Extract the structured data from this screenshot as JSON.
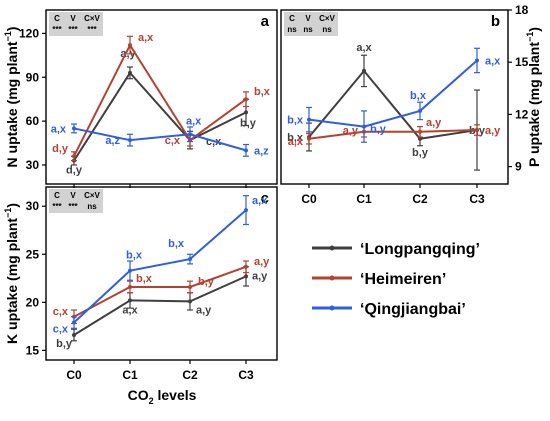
{
  "colors": {
    "Longpangqing": "#3f3f3f",
    "Heimeiren": "#b5412f",
    "Qingjiangbai": "#2f5fe0",
    "anova_bg": "#d2d2d2"
  },
  "legend": [
    {
      "key": "Longpangqing",
      "label": "‘Longpangqing’"
    },
    {
      "key": "Heimeiren",
      "label": "‘Heimeiren’"
    },
    {
      "key": "Qingjiangbai",
      "label": "‘Qingjiangbai’"
    }
  ],
  "xlabel_main": "CO",
  "xlabel_sub": "2",
  "xlabel_rest": " levels",
  "chart_data": [
    {
      "panel": "a",
      "type": "line",
      "ylabel_main": "N uptake (mg plant",
      "ylabel_sup": "−1",
      "ylabel_end": ")",
      "categories": [
        "C0",
        "C1",
        "C2",
        "C3"
      ],
      "ylim": [
        17,
        136
      ],
      "yticks": [
        30,
        60,
        90,
        120
      ],
      "anova": {
        "headers": [
          "C",
          "V",
          "C×V"
        ],
        "values": [
          "***",
          "***",
          "***"
        ]
      },
      "series": [
        {
          "name": "Longpangqing",
          "values": [
            33,
            93,
            47,
            66
          ],
          "errors": [
            3,
            4,
            6,
            9
          ],
          "labels": [
            "d,y",
            "a,y",
            "c,x",
            "b,y"
          ]
        },
        {
          "name": "Heimeiren",
          "values": [
            36,
            112,
            47,
            75
          ],
          "errors": [
            3,
            6,
            4,
            5
          ],
          "labels": [
            "d,y",
            "a,x",
            "c,x",
            "b,x"
          ]
        },
        {
          "name": "Qingjiangbai",
          "values": [
            55,
            47,
            51,
            40
          ],
          "errors": [
            3,
            4,
            5,
            4
          ],
          "labels": [
            "a,x",
            "a,z",
            "a,x",
            "a,z"
          ]
        }
      ]
    },
    {
      "panel": "b",
      "type": "line",
      "ylabel_main": "P uptake (mg plant",
      "ylabel_sup": "−1",
      "ylabel_end": ")",
      "categories": [
        "C0",
        "C1",
        "C2",
        "C3"
      ],
      "ylim": [
        8,
        18
      ],
      "yticks": [
        9,
        12,
        15,
        18
      ],
      "anova": {
        "headers": [
          "C",
          "V",
          "C×V"
        ],
        "values": [
          "ns",
          "ns",
          "ns"
        ]
      },
      "series": [
        {
          "name": "Longpangqing",
          "values": [
            10.7,
            14.5,
            10.6,
            11.1
          ],
          "errors": [
            0.8,
            0.9,
            0.4,
            2.3
          ],
          "labels": [
            "b,x",
            "a,x",
            "b,y",
            "b,y"
          ]
        },
        {
          "name": "Heimeiren",
          "values": [
            10.6,
            11.0,
            11.0,
            11.1
          ],
          "errors": [
            0.3,
            0.3,
            0.3,
            0.3
          ],
          "labels": [
            "a,x",
            "a,y",
            "a,y",
            "a,y"
          ]
        },
        {
          "name": "Qingjiangbai",
          "values": [
            11.7,
            11.3,
            12.2,
            15.1
          ],
          "errors": [
            0.7,
            0.9,
            0.5,
            0.7
          ],
          "labels": [
            "b,x",
            "b,y",
            "b,x",
            "a,x"
          ]
        }
      ]
    },
    {
      "panel": "c",
      "type": "line",
      "ylabel_main": "K uptake (mg plant",
      "ylabel_sup": "−1",
      "ylabel_end": ")",
      "categories": [
        "C0",
        "C1",
        "C2",
        "C3"
      ],
      "ylim": [
        14,
        32
      ],
      "yticks": [
        15,
        20,
        25,
        30
      ],
      "anova": {
        "headers": [
          "C",
          "V",
          "C×V"
        ],
        "values": [
          "***",
          "***",
          "ns"
        ]
      },
      "series": [
        {
          "name": "Longpangqing",
          "values": [
            16.6,
            20.2,
            20.1,
            22.7
          ],
          "errors": [
            0.6,
            0.8,
            0.9,
            1.0
          ],
          "labels": [
            "b,y",
            "a,x",
            "a,y",
            "a,y"
          ]
        },
        {
          "name": "Heimeiren",
          "values": [
            18.5,
            21.6,
            21.6,
            23.7
          ],
          "errors": [
            0.7,
            0.6,
            0.6,
            0.6
          ],
          "labels": [
            "c,x",
            "b,x",
            "b,y",
            "a,y"
          ]
        },
        {
          "name": "Qingjiangbai",
          "values": [
            17.9,
            23.3,
            24.5,
            29.6
          ],
          "errors": [
            0.6,
            1.0,
            0.5,
            1.5
          ],
          "labels": [
            "c,x",
            "b,x",
            "b,x",
            "a,x"
          ]
        }
      ]
    }
  ]
}
